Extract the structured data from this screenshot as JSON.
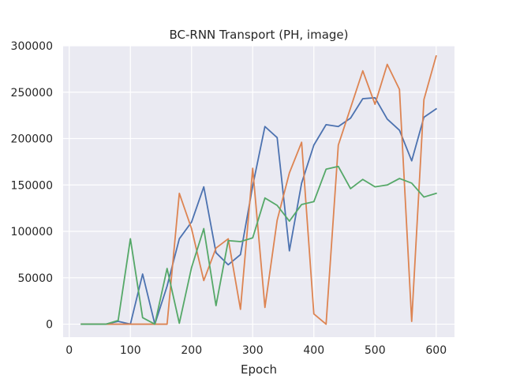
{
  "chart_data": {
    "type": "line",
    "title": "BC-RNN Transport (PH, image)",
    "xlabel": "Epoch",
    "ylabel": "",
    "xlim": [
      -10,
      630
    ],
    "ylim": [
      -14000,
      300000
    ],
    "xticks": [
      0,
      100,
      200,
      300,
      400,
      500,
      600
    ],
    "xtick_labels": [
      "0",
      "100",
      "200",
      "300",
      "400",
      "500",
      "600"
    ],
    "yticks": [
      0,
      50000,
      100000,
      150000,
      200000,
      250000,
      300000
    ],
    "ytick_labels": [
      "0",
      "50000",
      "100000",
      "150000",
      "200000",
      "250000",
      "300000"
    ],
    "grid": true,
    "background": "#eaeaf2",
    "x": [
      20,
      40,
      60,
      80,
      100,
      120,
      140,
      160,
      180,
      200,
      220,
      240,
      260,
      280,
      300,
      320,
      340,
      360,
      380,
      400,
      420,
      440,
      460,
      480,
      500,
      520,
      540,
      560,
      580,
      600
    ],
    "series": [
      {
        "color": "#4c72b0",
        "values": [
          0,
          0,
          0,
          3000,
          0,
          54000,
          0,
          41000,
          92000,
          110000,
          148000,
          77000,
          64000,
          75000,
          149000,
          213000,
          201000,
          79000,
          152000,
          193000,
          215000,
          213000,
          222000,
          243000,
          244000,
          221000,
          209000,
          176000,
          223000,
          232000
        ]
      },
      {
        "color": "#dd8452",
        "values": [
          0,
          0,
          0,
          0,
          0,
          0,
          0,
          0,
          141000,
          103000,
          47000,
          82000,
          92000,
          16000,
          168000,
          18000,
          112000,
          163000,
          196000,
          11000,
          0,
          193000,
          233000,
          273000,
          237000,
          280000,
          253000,
          3000,
          242000,
          289000
        ]
      },
      {
        "color": "#55a868",
        "values": [
          0,
          0,
          0,
          4000,
          92000,
          7000,
          0,
          60000,
          1000,
          61000,
          103000,
          20000,
          90000,
          89000,
          93000,
          136000,
          128000,
          111000,
          129000,
          132000,
          167000,
          170000,
          146000,
          156000,
          148000,
          150000,
          157000,
          152000,
          137000,
          141000
        ]
      }
    ]
  }
}
